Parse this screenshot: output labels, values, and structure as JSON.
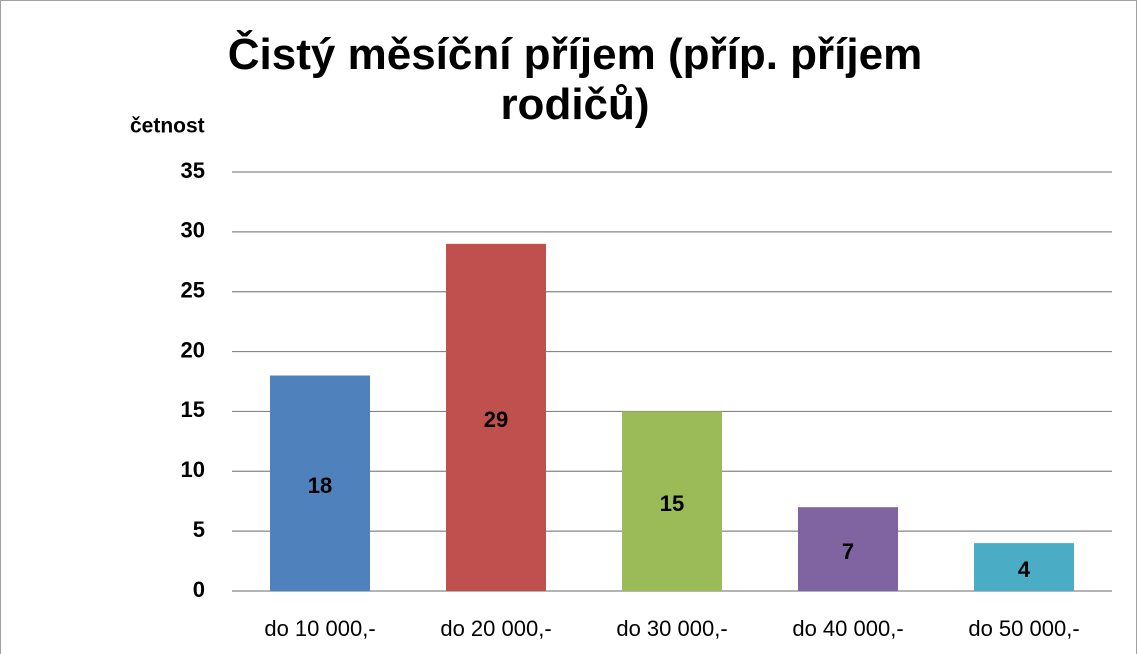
{
  "chart_data": {
    "type": "bar",
    "title": "Čistý měsíční příjem (příp. příjem rodičů)",
    "y_label": "četnost",
    "categories": [
      "do 10 000,-",
      "do 20 000,-",
      "do 30 000,-",
      "do 40 000,-",
      "do 50 000,-"
    ],
    "values": [
      18,
      29,
      15,
      7,
      4
    ],
    "colors": [
      "#4f81bd",
      "#c0504d",
      "#9bbb59",
      "#8064a2",
      "#4bacc6"
    ],
    "ylim": [
      0,
      35
    ],
    "yticks": [
      0,
      5,
      10,
      15,
      20,
      25,
      30,
      35
    ],
    "grid": true
  }
}
